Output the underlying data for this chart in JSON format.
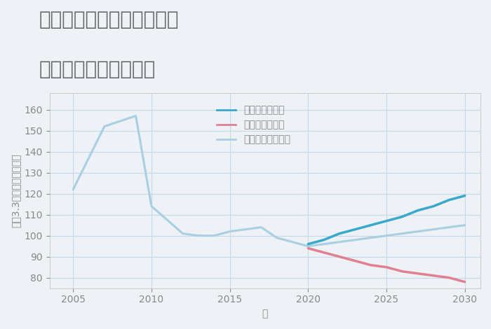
{
  "title_line1": "兵庫県美方郡新温泉町湯の",
  "title_line2": "中古戸建ての価格推移",
  "xlabel": "年",
  "ylabel": "坪（3.3㎡）単価（万円）",
  "xlim": [
    2003.5,
    2031
  ],
  "ylim": [
    75,
    168
  ],
  "xticks": [
    2005,
    2010,
    2015,
    2020,
    2025,
    2030
  ],
  "yticks": [
    80,
    90,
    100,
    110,
    120,
    130,
    140,
    150,
    160
  ],
  "background_color": "#eef2f6",
  "plot_bg_color": "#eef2f6",
  "normal_scenario": {
    "label": "ノーマルシナリオ",
    "color": "#a8d0e0",
    "linewidth": 2.2,
    "x": [
      2005,
      2007,
      2009,
      2010,
      2012,
      2013,
      2014,
      2015,
      2017,
      2018,
      2020,
      2021,
      2022,
      2023,
      2024,
      2025,
      2026,
      2027,
      2028,
      2029,
      2030
    ],
    "y": [
      122,
      152,
      157,
      114,
      101,
      100,
      100,
      102,
      104,
      99,
      95,
      96,
      97,
      98,
      99,
      100,
      101,
      102,
      103,
      104,
      105
    ]
  },
  "good_scenario": {
    "label": "グッドシナリオ",
    "color": "#3aa8cc",
    "linewidth": 2.5,
    "x": [
      2020,
      2021,
      2022,
      2023,
      2024,
      2025,
      2026,
      2027,
      2028,
      2029,
      2030
    ],
    "y": [
      96,
      98,
      101,
      103,
      105,
      107,
      109,
      112,
      114,
      117,
      119
    ]
  },
  "bad_scenario": {
    "label": "バッドシナリオ",
    "color": "#e08090",
    "linewidth": 2.5,
    "x": [
      2020,
      2021,
      2022,
      2023,
      2024,
      2025,
      2026,
      2027,
      2028,
      2029,
      2030
    ],
    "y": [
      94,
      92,
      90,
      88,
      86,
      85,
      83,
      82,
      81,
      80,
      78
    ]
  },
  "grid_color": "#c5d8e8",
  "title_color": "#666666",
  "axis_color": "#888888",
  "legend_fontsize": 10,
  "title_fontsize": 20,
  "axis_label_fontsize": 10,
  "tick_fontsize": 10
}
